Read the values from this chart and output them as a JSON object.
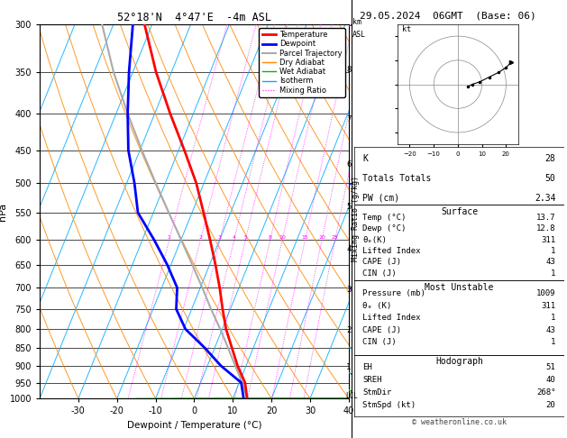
{
  "title_left": "52°18'N  4°47'E  -4m ASL",
  "title_right": "29.05.2024  06GMT  (Base: 06)",
  "xlabel": "Dewpoint / Temperature (°C)",
  "ylabel_left": "hPa",
  "pressure_ticks": [
    300,
    350,
    400,
    450,
    500,
    550,
    600,
    650,
    700,
    750,
    800,
    850,
    900,
    950,
    1000
  ],
  "temp_ticks": [
    -30,
    -20,
    -10,
    0,
    10,
    20,
    30,
    40
  ],
  "tmin": -40,
  "tmax": 40,
  "pmin": 300,
  "pmax": 1000,
  "dry_adiabat_color": "#ff8800",
  "wet_adiabat_color": "#00bb00",
  "isotherm_color": "#00aaff",
  "mixing_ratio_color": "#ff00ff",
  "mixing_ratio_values": [
    1,
    2,
    3,
    4,
    5,
    8,
    10,
    15,
    20,
    25
  ],
  "temp_profile": {
    "pressure": [
      1000,
      950,
      900,
      850,
      800,
      750,
      700,
      650,
      600,
      550,
      500,
      450,
      400,
      350,
      300
    ],
    "temp": [
      13.7,
      11.5,
      7.8,
      4.5,
      1.0,
      -2.0,
      -5.0,
      -8.5,
      -12.5,
      -17.0,
      -22.0,
      -28.5,
      -36.0,
      -44.0,
      -52.0
    ],
    "color": "#ff0000",
    "linewidth": 2.0
  },
  "dewp_profile": {
    "pressure": [
      1000,
      950,
      900,
      850,
      800,
      750,
      700,
      650,
      600,
      550,
      500,
      450,
      400,
      350,
      300
    ],
    "temp": [
      12.8,
      10.5,
      3.5,
      -2.5,
      -9.5,
      -14.0,
      -16.0,
      -21.0,
      -27.0,
      -34.0,
      -38.0,
      -43.0,
      -47.0,
      -51.0,
      -55.0
    ],
    "color": "#0000ff",
    "linewidth": 2.0
  },
  "parcel_profile": {
    "pressure": [
      1000,
      950,
      900,
      850,
      800,
      750,
      700,
      650,
      600,
      550,
      500,
      450,
      400,
      350,
      300
    ],
    "temp": [
      13.7,
      10.8,
      7.2,
      3.5,
      -0.5,
      -5.0,
      -9.5,
      -14.5,
      -20.0,
      -26.0,
      -32.5,
      -39.5,
      -47.0,
      -55.0,
      -63.0
    ],
    "color": "#aaaaaa",
    "linewidth": 1.5
  },
  "km_ticks": [
    8,
    7,
    6,
    5,
    4,
    3,
    2,
    1
  ],
  "km_pressures": [
    348,
    407,
    471,
    540,
    618,
    705,
    802,
    905
  ],
  "lcl_pressure": 993,
  "wind_barbs": [
    {
      "p": 300,
      "u": 22,
      "v": 10,
      "color": "#aa00aa"
    },
    {
      "p": 500,
      "u": 16,
      "v": 5,
      "color": "#0000ff"
    },
    {
      "p": 700,
      "u": 10,
      "v": 2,
      "color": "#0000ff"
    },
    {
      "p": 850,
      "u": 7,
      "v": -2,
      "color": "#00aaaa"
    },
    {
      "p": 925,
      "u": 5,
      "v": -3,
      "color": "#00aaaa"
    },
    {
      "p": 975,
      "u": 4,
      "v": -2,
      "color": "#00bb00"
    }
  ],
  "info_box": {
    "K": 28,
    "Totals_Totals": 50,
    "PW_cm": "2.34",
    "Surface_Temp": "13.7",
    "Surface_Dewp": "12.8",
    "Surface_theta_e": 311,
    "Surface_LI": 1,
    "Surface_CAPE": 43,
    "Surface_CIN": 1,
    "MU_Pressure": 1009,
    "MU_theta_e": 311,
    "MU_LI": 1,
    "MU_CAPE": 43,
    "MU_CIN": 1,
    "EH": 51,
    "SREH": 40,
    "StmDir": "268°",
    "StmSpd_kt": 20
  },
  "skew_factor": 32.5,
  "legend_entries": [
    {
      "label": "Temperature",
      "color": "#ff0000",
      "lw": 2.0,
      "ls": "-"
    },
    {
      "label": "Dewpoint",
      "color": "#0000ff",
      "lw": 2.0,
      "ls": "-"
    },
    {
      "label": "Parcel Trajectory",
      "color": "#aaaaaa",
      "lw": 1.5,
      "ls": "-"
    },
    {
      "label": "Dry Adiabat",
      "color": "#ff8800",
      "lw": 1.0,
      "ls": "-"
    },
    {
      "label": "Wet Adiabat",
      "color": "#00bb00",
      "lw": 1.0,
      "ls": "-"
    },
    {
      "label": "Isotherm",
      "color": "#00aaff",
      "lw": 1.0,
      "ls": "-"
    },
    {
      "label": "Mixing Ratio",
      "color": "#ff00ff",
      "lw": 0.8,
      "ls": ":"
    }
  ]
}
